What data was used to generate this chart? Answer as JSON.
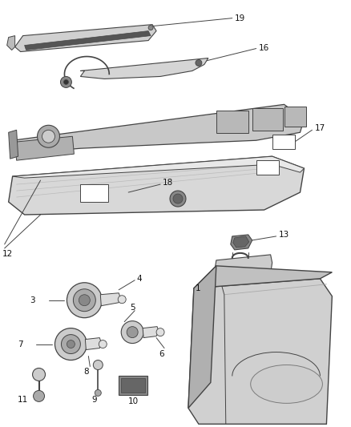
{
  "bg_color": "#ffffff",
  "fig_width": 4.38,
  "fig_height": 5.33,
  "dpi": 100,
  "line_color": "#444444",
  "text_color": "#111111",
  "font_size": 7.5
}
